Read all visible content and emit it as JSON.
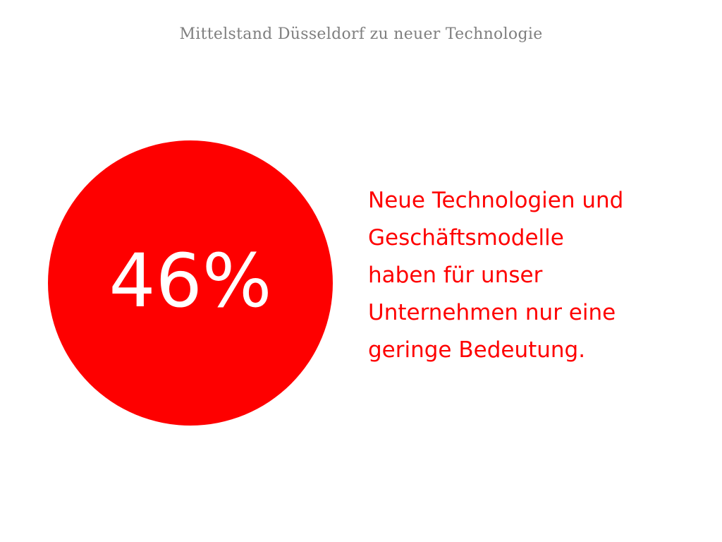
{
  "slide": {
    "title": "Mittelstand Düsseldorf zu neuer Technologie",
    "accent_color": "#fe0000",
    "stat": {
      "value": "46%"
    },
    "statement_lines": [
      "Neue Technologien und",
      "Geschäftsmodelle",
      "haben für unser",
      "Unternehmen nur eine",
      "geringe Bedeutung."
    ]
  }
}
